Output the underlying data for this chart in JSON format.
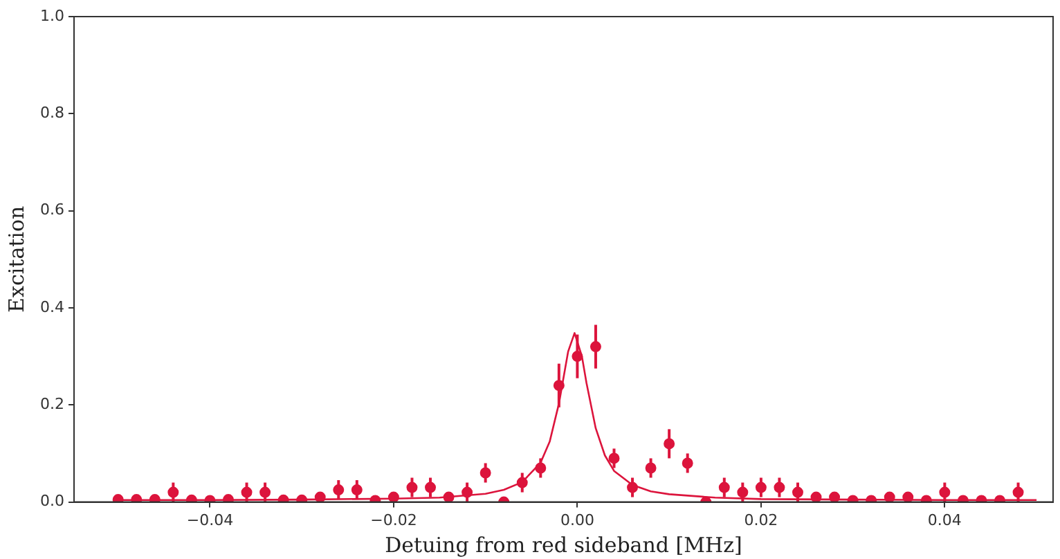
{
  "chart_data": {
    "type": "scatter",
    "xlabel": "Detuing from red sideband [MHz]",
    "ylabel": "Excitation",
    "xlim": [
      -0.0548,
      0.0518
    ],
    "ylim": [
      0,
      1
    ],
    "xticks": [
      {
        "value": -0.04,
        "label": "−0.04"
      },
      {
        "value": -0.02,
        "label": "−0.02"
      },
      {
        "value": 0,
        "label": "0.00"
      },
      {
        "value": 0.02,
        "label": "0.02"
      },
      {
        "value": 0.04,
        "label": "0.04"
      }
    ],
    "yticks": [
      {
        "value": 0,
        "label": "0.0"
      },
      {
        "value": 0.2,
        "label": "0.2"
      },
      {
        "value": 0.4,
        "label": "0.4"
      },
      {
        "value": 0.6,
        "label": "0.6"
      },
      {
        "value": 0.8,
        "label": "0.8"
      },
      {
        "value": 1,
        "label": "1.0"
      }
    ],
    "grid": false,
    "legend": false,
    "marker": "circle",
    "series": [
      {
        "color": "#dc143c",
        "x": [
          -0.05,
          -0.048,
          -0.046,
          -0.044,
          -0.042,
          -0.04,
          -0.038,
          -0.036,
          -0.034,
          -0.032,
          -0.03,
          -0.028,
          -0.026,
          -0.024,
          -0.022,
          -0.02,
          -0.018,
          -0.016,
          -0.014,
          -0.012,
          -0.01,
          -0.008,
          -0.006,
          -0.004,
          -0.002,
          0,
          0.002,
          0.004,
          0.006,
          0.008,
          0.01,
          0.012,
          0.014,
          0.016,
          0.018,
          0.02,
          0.022,
          0.024,
          0.026,
          0.028,
          0.03,
          0.032,
          0.034,
          0.036,
          0.038,
          0.04,
          0.042,
          0.044,
          0.046,
          0.048
        ],
        "values": [
          0.005,
          0.005,
          0.005,
          0.02,
          0.004,
          0.003,
          0.005,
          0.02,
          0.02,
          0.004,
          0.004,
          0.01,
          0.025,
          0.025,
          0.003,
          0.01,
          0.03,
          0.03,
          0.01,
          0.02,
          0.06,
          0,
          0.04,
          0.07,
          0.24,
          0.3,
          0.32,
          0.09,
          0.03,
          0.07,
          0.12,
          0.08,
          0,
          0.03,
          0.02,
          0.03,
          0.03,
          0.02,
          0.01,
          0.01,
          0.003,
          0.003,
          0.01,
          0.01,
          0.003,
          0.02,
          0.003,
          0.003,
          0.003,
          0.02
        ],
        "errors": [
          0.005,
          0.005,
          0.005,
          0.02,
          0.004,
          0.003,
          0.005,
          0.02,
          0.02,
          0.004,
          0.004,
          0.01,
          0.02,
          0.02,
          0.003,
          0.01,
          0.02,
          0.02,
          0.01,
          0.02,
          0.02,
          0,
          0.02,
          0.02,
          0.045,
          0.045,
          0.045,
          0.02,
          0.02,
          0.02,
          0.03,
          0.02,
          0,
          0.02,
          0.02,
          0.02,
          0.02,
          0.02,
          0.01,
          0.01,
          0.003,
          0.003,
          0.01,
          0.01,
          0.003,
          0.02,
          0.003,
          0.003,
          0.003,
          0.02
        ]
      },
      {
        "type": "line",
        "marker": "none",
        "color": "#dc143c",
        "x": [
          -0.05,
          -0.04,
          -0.03,
          -0.02,
          -0.015,
          -0.01,
          -0.008,
          -0.006,
          -0.004,
          -0.003,
          -0.002,
          -0.001,
          -0.0003,
          0.0005,
          0.001,
          0.002,
          0.003,
          0.004,
          0.006,
          0.008,
          0.01,
          0.015,
          0.02,
          0.03,
          0.04,
          0.05
        ],
        "values": [
          0.004,
          0.004,
          0.005,
          0.007,
          0.009,
          0.017,
          0.025,
          0.041,
          0.081,
          0.125,
          0.203,
          0.31,
          0.348,
          0.3,
          0.245,
          0.152,
          0.096,
          0.064,
          0.035,
          0.022,
          0.016,
          0.009,
          0.006,
          0.005,
          0.004,
          0.004
        ]
      }
    ]
  }
}
